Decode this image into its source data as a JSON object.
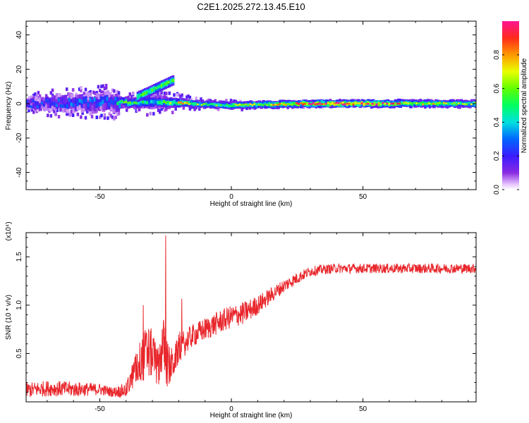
{
  "title": "C2E1.2025.272.13.45.E10",
  "chart_data": [
    {
      "type": "heatmap",
      "name": "spectrogram",
      "xlabel": "Height of straight line (km)",
      "ylabel": "Frequency (Hz)",
      "xlim": [
        -78,
        93
      ],
      "ylim": [
        -50,
        48
      ],
      "xticks": [
        -50,
        0,
        50
      ],
      "xtick_labels": [
        "-50",
        "0",
        "50"
      ],
      "yticks": [
        -40,
        -20,
        0,
        20,
        40
      ],
      "ytick_labels": [
        "-40",
        "-20",
        "0",
        "20",
        "40"
      ],
      "colorbar": {
        "label": "Normalized spectral amplitude",
        "range": [
          0.0,
          1.0
        ],
        "ticks": [
          0.0,
          0.2,
          0.4,
          0.6,
          0.8
        ],
        "tick_labels": [
          "0.0",
          "0.2",
          "0.4",
          "0.6",
          "0.8"
        ]
      },
      "band": {
        "x": [
          -78,
          -60,
          -45,
          -42,
          -30,
          -20,
          -10,
          0,
          10,
          30,
          50,
          70,
          93
        ],
        "center_freq": [
          0,
          0.5,
          1,
          0,
          1,
          0.5,
          -0.5,
          -1,
          -0.5,
          0,
          0,
          0,
          0
        ],
        "amplitude": [
          0.25,
          0.3,
          0.3,
          0.6,
          0.4,
          0.7,
          0.55,
          0.6,
          0.65,
          0.9,
          0.95,
          0.7,
          0.6
        ],
        "scatter_halfwidth_hz": [
          6,
          9,
          10,
          5,
          8,
          5,
          3,
          3,
          2,
          2,
          2,
          2,
          2
        ]
      },
      "branch": {
        "x": [
          -36,
          -22
        ],
        "freq": [
          4,
          14
        ]
      }
    },
    {
      "type": "line",
      "name": "snr",
      "xlabel": "Height of straight line (km)",
      "ylabel": "SNR (10 * v/v)",
      "multiplier_label": "(x10⁴)",
      "xlim": [
        -78,
        93
      ],
      "ylim": [
        0,
        1.75
      ],
      "xticks": [
        -50,
        0,
        50
      ],
      "xtick_labels": [
        "-50",
        "0",
        "50"
      ],
      "yticks": [
        0.5,
        1.0,
        1.5
      ],
      "ytick_labels": [
        "0.5",
        "1.0",
        "1.5"
      ],
      "color": "#e8262b",
      "x": [
        -78,
        -70,
        -60,
        -50,
        -45,
        -40,
        -37,
        -34,
        -32,
        -30,
        -28,
        -26,
        -24,
        -22,
        -20,
        -15,
        -10,
        -5,
        0,
        5,
        10,
        15,
        20,
        25,
        30,
        35,
        40,
        50,
        60,
        70,
        80,
        93
      ],
      "y": [
        0.12,
        0.14,
        0.13,
        0.13,
        0.1,
        0.12,
        0.3,
        0.45,
        0.5,
        0.5,
        0.35,
        0.6,
        0.35,
        0.4,
        0.55,
        0.68,
        0.75,
        0.82,
        0.88,
        0.92,
        1.0,
        1.1,
        1.2,
        1.28,
        1.35,
        1.37,
        1.38,
        1.38,
        1.38,
        1.38,
        1.38,
        1.38
      ],
      "noise": [
        0.08,
        0.08,
        0.08,
        0.06,
        0.05,
        0.08,
        0.15,
        0.25,
        0.3,
        0.25,
        0.2,
        0.3,
        0.25,
        0.15,
        0.15,
        0.12,
        0.12,
        0.12,
        0.12,
        0.12,
        0.1,
        0.08,
        0.07,
        0.06,
        0.05,
        0.05,
        0.05,
        0.05,
        0.05,
        0.05,
        0.05,
        0.05
      ],
      "spikes": [
        {
          "x": -25,
          "y": 1.72
        },
        {
          "x": -33.5,
          "y": 1.0
        }
      ]
    }
  ]
}
